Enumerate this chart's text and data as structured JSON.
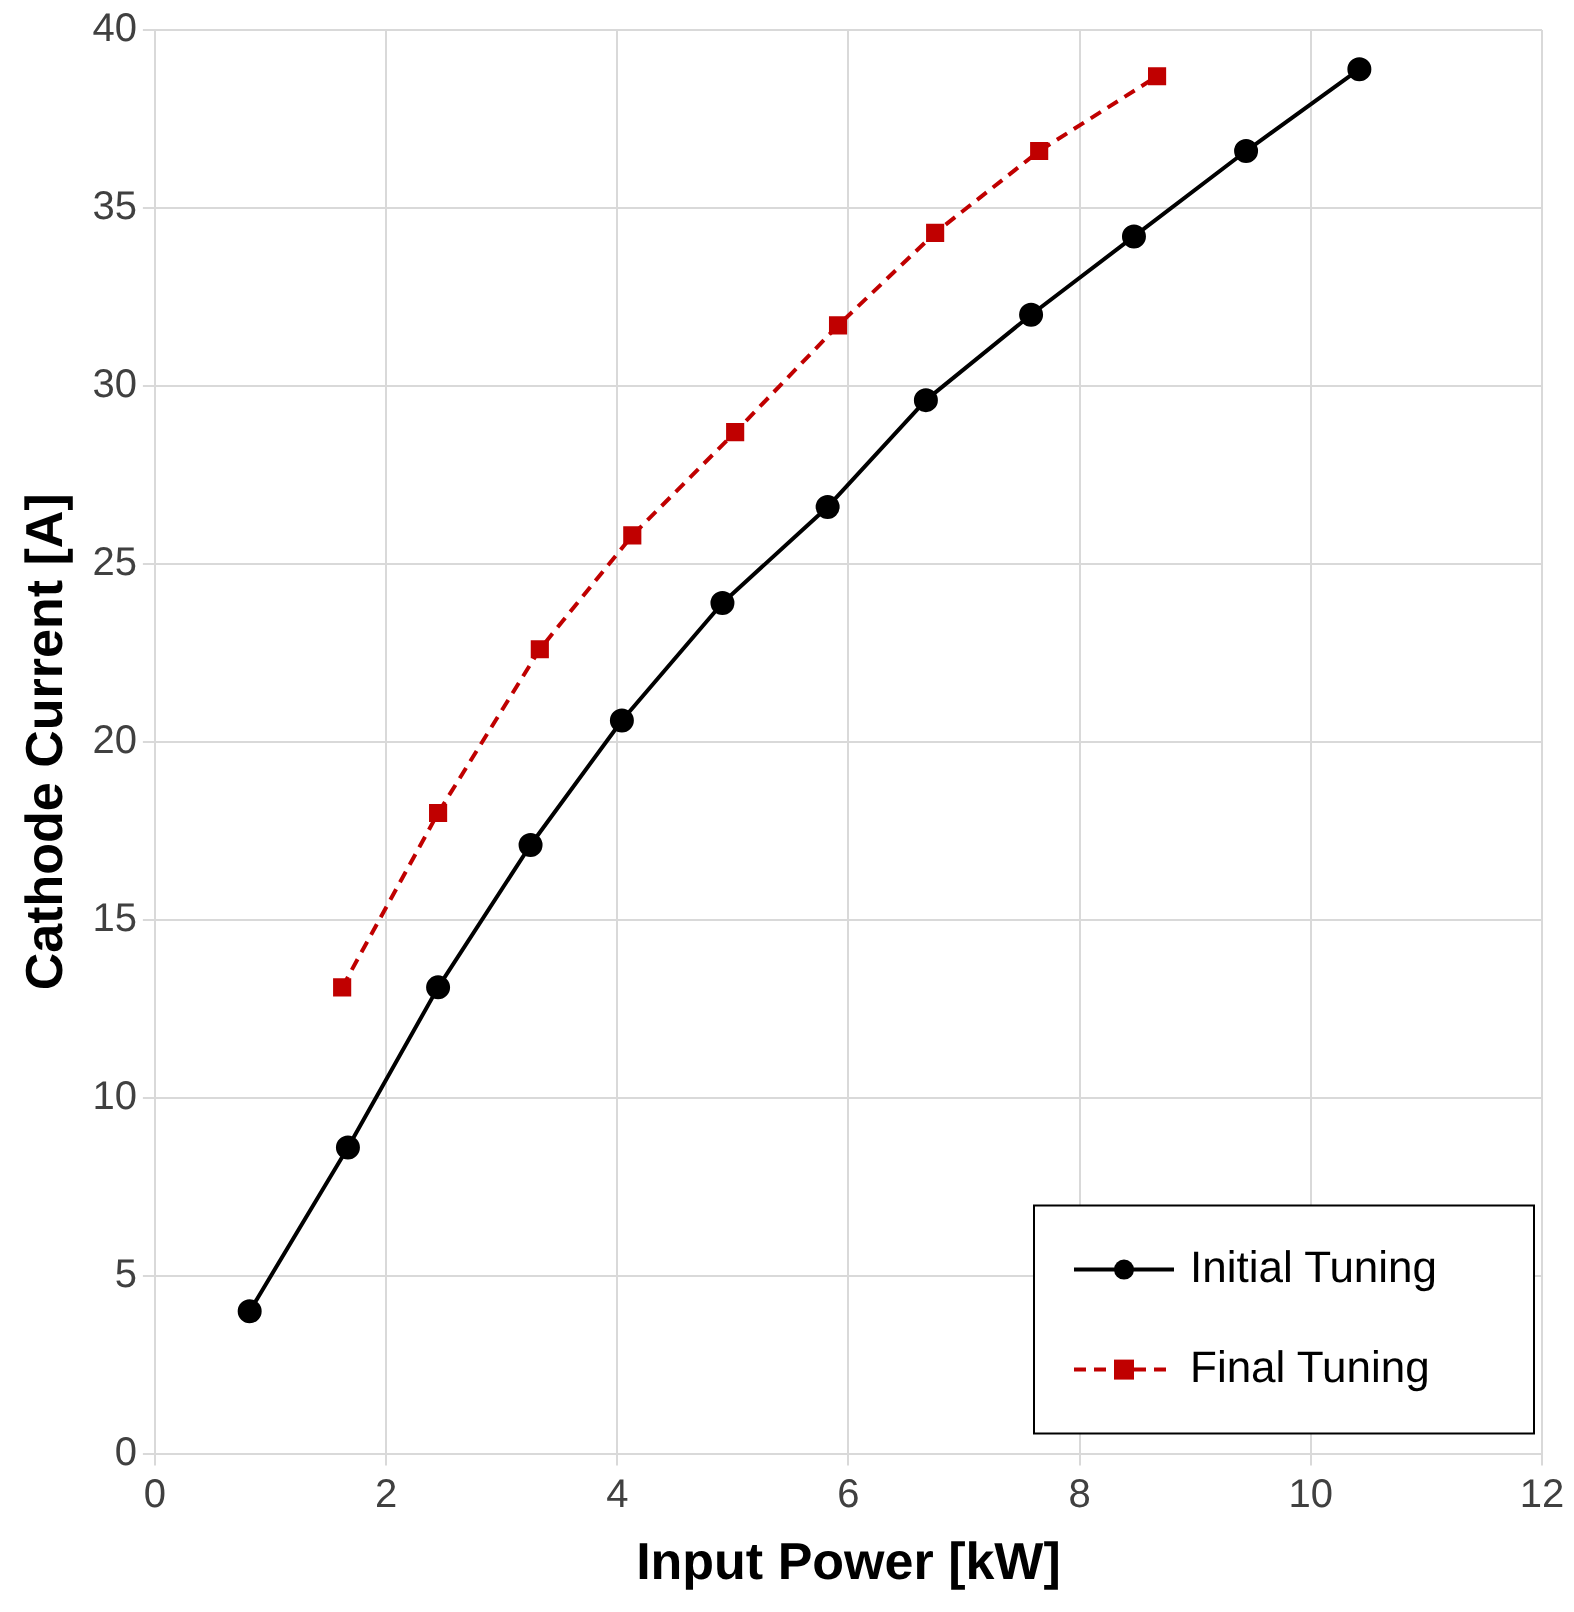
{
  "chart_data": {
    "type": "line",
    "xlabel": "Input Power [kW]",
    "ylabel": "Cathode Current [A]",
    "xlim": [
      0,
      12
    ],
    "xticks": [
      0,
      2,
      4,
      6,
      8,
      10,
      12
    ],
    "ylim": [
      0,
      40
    ],
    "yticks": [
      0,
      5,
      10,
      15,
      20,
      25,
      30,
      35,
      40
    ],
    "grid": true,
    "legend": "bottom right",
    "series": [
      {
        "name": "Initial Tuning",
        "color": "#000000",
        "marker": "circle",
        "line_style": "solid",
        "x": [
          0.82,
          1.67,
          2.45,
          3.25,
          4.04,
          4.91,
          5.82,
          6.67,
          7.58,
          8.47,
          9.44,
          10.42
        ],
        "values": [
          4.0,
          8.6,
          13.1,
          17.1,
          20.6,
          23.9,
          26.6,
          29.6,
          32.0,
          34.2,
          36.6,
          38.9
        ]
      },
      {
        "name": "Final Tuning",
        "color": "#c00000",
        "marker": "square",
        "line_style": "dashed",
        "x": [
          1.62,
          2.45,
          3.33,
          4.13,
          5.02,
          5.91,
          6.75,
          7.65,
          8.67
        ],
        "values": [
          13.1,
          18.0,
          22.6,
          25.8,
          28.7,
          31.7,
          34.3,
          36.6,
          38.7
        ]
      }
    ]
  }
}
